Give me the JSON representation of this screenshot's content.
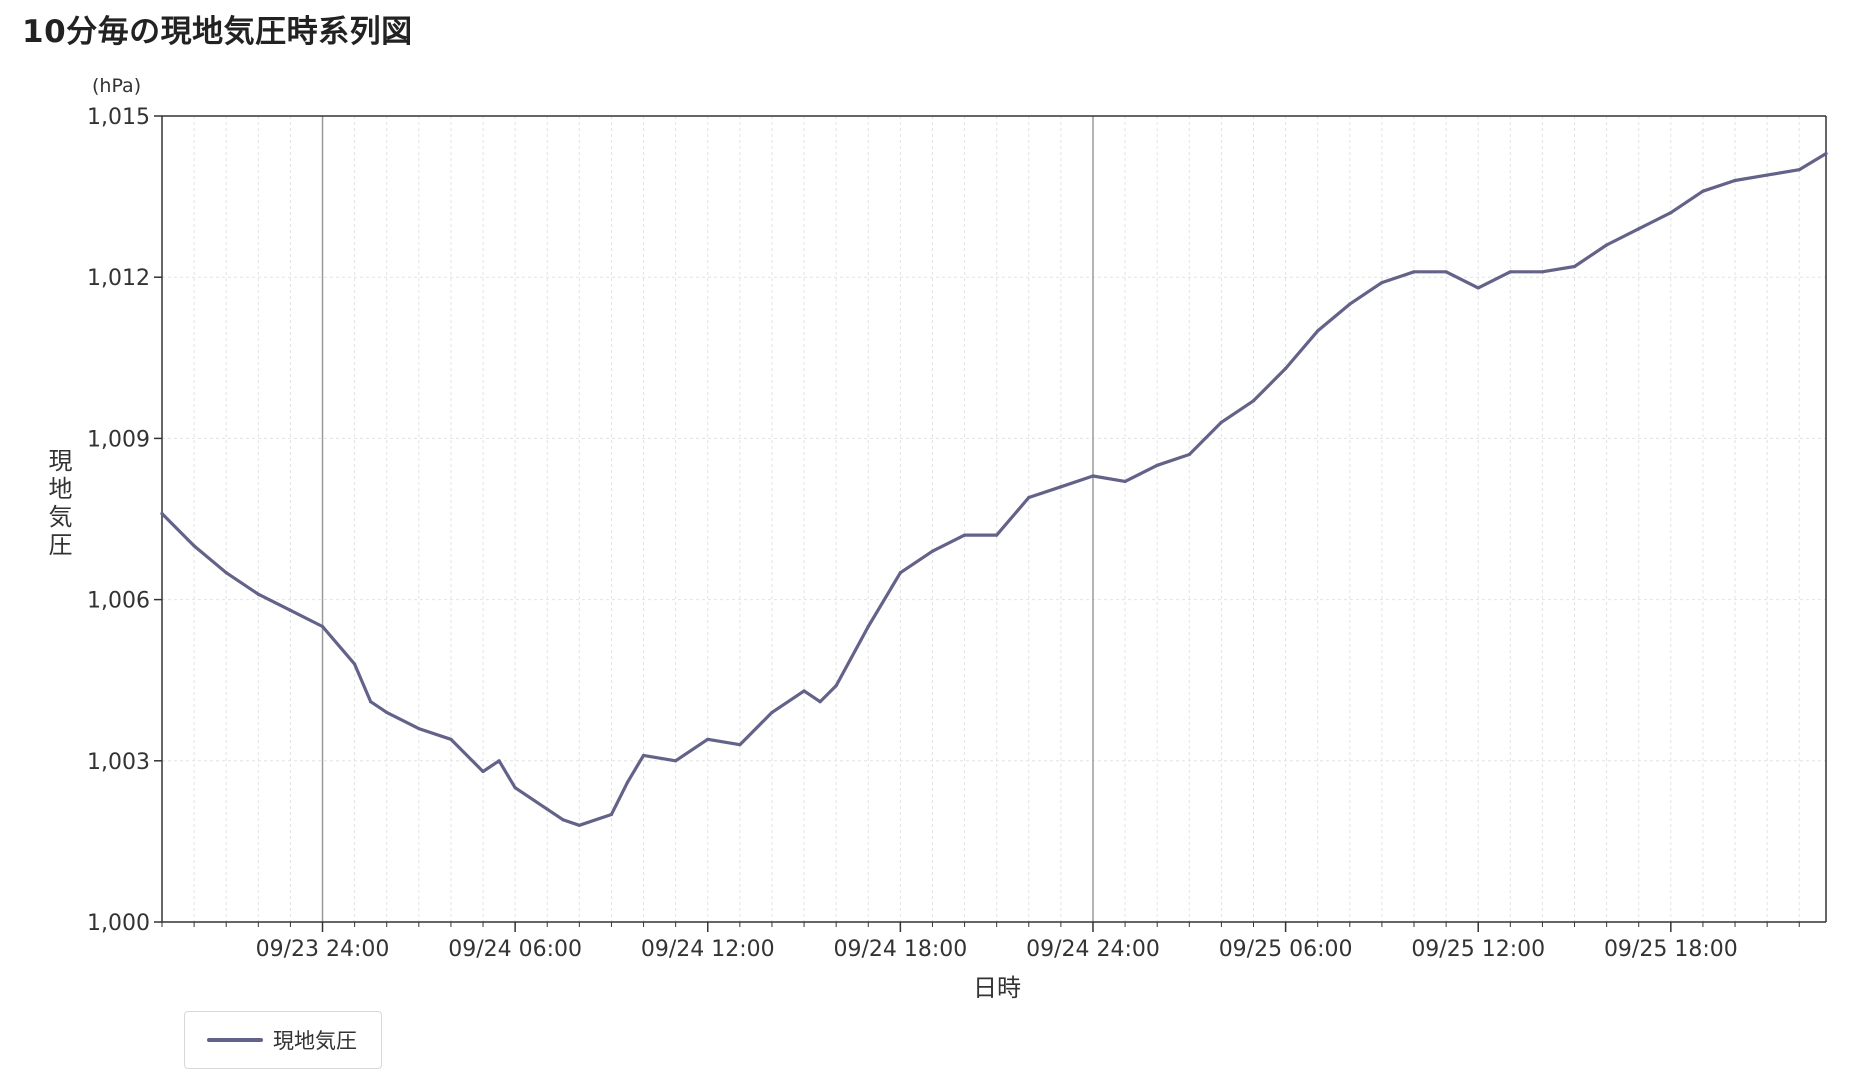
{
  "page": {
    "title": "10分毎の現地気圧時系列図"
  },
  "chart_data": {
    "type": "line",
    "title": "10分毎の現地気圧時系列図",
    "ylabel": "現地気圧",
    "yunit": "(hPa)",
    "xlabel": "日時",
    "ylim": [
      1000,
      1015
    ],
    "yticks": [
      1000,
      1003,
      1006,
      1009,
      1012,
      1015
    ],
    "ytick_labels": [
      "1,000",
      "1,003",
      "1,006",
      "1,009",
      "1,012",
      "1,015"
    ],
    "xlim": [
      "09/23 19:00",
      "09/25 22:50"
    ],
    "xtick_labels": [
      "09/23 24:00",
      "09/24 06:00",
      "09/24 12:00",
      "09/24 18:00",
      "09/24 24:00",
      "09/25 06:00",
      "09/25 12:00",
      "09/25 18:00"
    ],
    "grid": true,
    "legend": "bottom-left",
    "colors": {
      "line": "#636289",
      "grid": "#e3e3e3",
      "axis": "#333333"
    },
    "series": [
      {
        "name": "現地気圧",
        "points": [
          [
            "09/23 19:00",
            1007.6
          ],
          [
            "09/23 20:00",
            1007.0
          ],
          [
            "09/23 21:00",
            1006.5
          ],
          [
            "09/23 22:00",
            1006.1
          ],
          [
            "09/23 23:00",
            1005.8
          ],
          [
            "09/24 00:00",
            1005.5
          ],
          [
            "09/24 01:00",
            1004.8
          ],
          [
            "09/24 01:30",
            1004.1
          ],
          [
            "09/24 02:00",
            1003.9
          ],
          [
            "09/24 03:00",
            1003.6
          ],
          [
            "09/24 04:00",
            1003.4
          ],
          [
            "09/24 05:00",
            1002.8
          ],
          [
            "09/24 05:30",
            1003.0
          ],
          [
            "09/24 06:00",
            1002.5
          ],
          [
            "09/24 07:00",
            1002.1
          ],
          [
            "09/24 07:30",
            1001.9
          ],
          [
            "09/24 08:00",
            1001.8
          ],
          [
            "09/24 09:00",
            1002.0
          ],
          [
            "09/24 09:30",
            1002.6
          ],
          [
            "09/24 10:00",
            1003.1
          ],
          [
            "09/24 11:00",
            1003.0
          ],
          [
            "09/24 12:00",
            1003.4
          ],
          [
            "09/24 13:00",
            1003.3
          ],
          [
            "09/24 14:00",
            1003.9
          ],
          [
            "09/24 15:00",
            1004.3
          ],
          [
            "09/24 15:30",
            1004.1
          ],
          [
            "09/24 16:00",
            1004.4
          ],
          [
            "09/24 17:00",
            1005.5
          ],
          [
            "09/24 18:00",
            1006.5
          ],
          [
            "09/24 19:00",
            1006.9
          ],
          [
            "09/24 20:00",
            1007.2
          ],
          [
            "09/24 21:00",
            1007.2
          ],
          [
            "09/24 22:00",
            1007.9
          ],
          [
            "09/24 23:00",
            1008.1
          ],
          [
            "09/25 00:00",
            1008.3
          ],
          [
            "09/25 01:00",
            1008.2
          ],
          [
            "09/25 02:00",
            1008.5
          ],
          [
            "09/25 03:00",
            1008.7
          ],
          [
            "09/25 04:00",
            1009.3
          ],
          [
            "09/25 05:00",
            1009.7
          ],
          [
            "09/25 06:00",
            1010.3
          ],
          [
            "09/25 07:00",
            1011.0
          ],
          [
            "09/25 08:00",
            1011.5
          ],
          [
            "09/25 09:00",
            1011.9
          ],
          [
            "09/25 10:00",
            1012.1
          ],
          [
            "09/25 11:00",
            1012.1
          ],
          [
            "09/25 12:00",
            1011.8
          ],
          [
            "09/25 13:00",
            1012.1
          ],
          [
            "09/25 14:00",
            1012.1
          ],
          [
            "09/25 15:00",
            1012.2
          ],
          [
            "09/25 16:00",
            1012.6
          ],
          [
            "09/25 17:00",
            1012.9
          ],
          [
            "09/25 18:00",
            1013.2
          ],
          [
            "09/25 19:00",
            1013.6
          ],
          [
            "09/25 20:00",
            1013.8
          ],
          [
            "09/25 21:00",
            1013.9
          ],
          [
            "09/25 22:00",
            1014.0
          ],
          [
            "09/25 22:50",
            1014.3
          ]
        ]
      }
    ]
  }
}
